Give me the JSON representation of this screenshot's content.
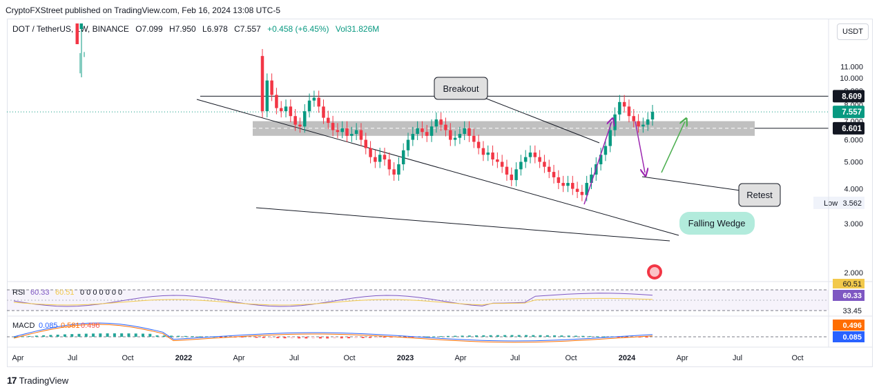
{
  "header": {
    "caption": "CryptoFXStreet published on TradingView.com, Feb 16, 2024 13:08 UTC-5",
    "symbol": "DOT / TetherUS, 1W, BINANCE",
    "open": "O7.099",
    "high": "H7.950",
    "low": "L6.978",
    "close": "C7.557",
    "change": "+0.458 (+6.45%)",
    "volume": "Vol31.826M",
    "currency_button": "USDT"
  },
  "colors": {
    "up": "#089981",
    "down": "#f23645",
    "rsi": "#7e57c2",
    "rsi_ma": "#f2c94c",
    "macd": "#2962ff",
    "signal": "#ff6d00",
    "wedge": "#131722",
    "zone": "#9e9e9e",
    "arrow_purple": "#9c27b0",
    "arrow_green": "#4caf50"
  },
  "chart_data": {
    "type": "candlestick",
    "y_axis_ticks": [
      "11.000",
      "10.000",
      "9.000",
      "8.000",
      "7.000",
      "6.000",
      "5.000",
      "4.000",
      "3.000",
      "2.000"
    ],
    "x_axis_ticks": [
      "Apr",
      "Jul",
      "Oct",
      "2022",
      "Apr",
      "Jul",
      "Oct",
      "2023",
      "Apr",
      "Jul",
      "Oct",
      "2024",
      "Apr",
      "Jul",
      "Oct"
    ],
    "price_labels": {
      "resistance": "8.609",
      "last": "7.557",
      "support": "6.601",
      "low_label": "Low",
      "low": "3.562"
    },
    "annotations": {
      "breakout": "Breakout",
      "retest": "Retest",
      "pattern": "Falling Wedge"
    },
    "key_levels": {
      "resistance": 8.609,
      "support": 6.601,
      "zone": [
        6.2,
        7.0
      ]
    },
    "weekly_close": [
      7.6,
      9.8,
      8.7,
      7.8,
      7.6,
      7.9,
      7.3,
      6.8,
      6.7,
      7.6,
      8.3,
      8.5,
      7.9,
      7.2,
      6.9,
      6.5,
      6.4,
      6.6,
      6.2,
      6.3,
      6.5,
      6.0,
      5.6,
      5.2,
      5.0,
      5.3,
      5.1,
      4.7,
      4.5,
      4.9,
      5.5,
      6.0,
      6.3,
      6.6,
      6.4,
      6.2,
      6.7,
      7.1,
      6.8,
      6.5,
      6.0,
      6.1,
      6.3,
      6.6,
      6.2,
      5.9,
      5.6,
      5.3,
      5.4,
      5.1,
      5.0,
      4.8,
      4.5,
      4.3,
      4.7,
      5.0,
      5.2,
      5.4,
      5.2,
      5.0,
      4.8,
      4.6,
      4.4,
      4.2,
      4.1,
      4.2,
      4.0,
      3.9,
      3.8,
      4.2,
      4.5,
      4.9,
      5.3,
      5.7,
      6.5,
      7.4,
      8.2,
      7.9,
      7.3,
      7.0,
      6.7,
      6.8,
      7.1,
      7.557
    ],
    "rsi": {
      "label": "RSI",
      "params": "60.33",
      "ma": "60.51",
      "zeros": "0 0 0 0 0 0 0",
      "axis_ticks": [
        "60.51",
        "60.33",
        "33.45"
      ]
    },
    "macd": {
      "label": "MACD",
      "macd": "0.085",
      "signal": "0.581",
      "hist": "0.496",
      "axis_ticks": [
        "0.496",
        "0.085"
      ]
    }
  },
  "footer": {
    "brand": "TradingView"
  }
}
